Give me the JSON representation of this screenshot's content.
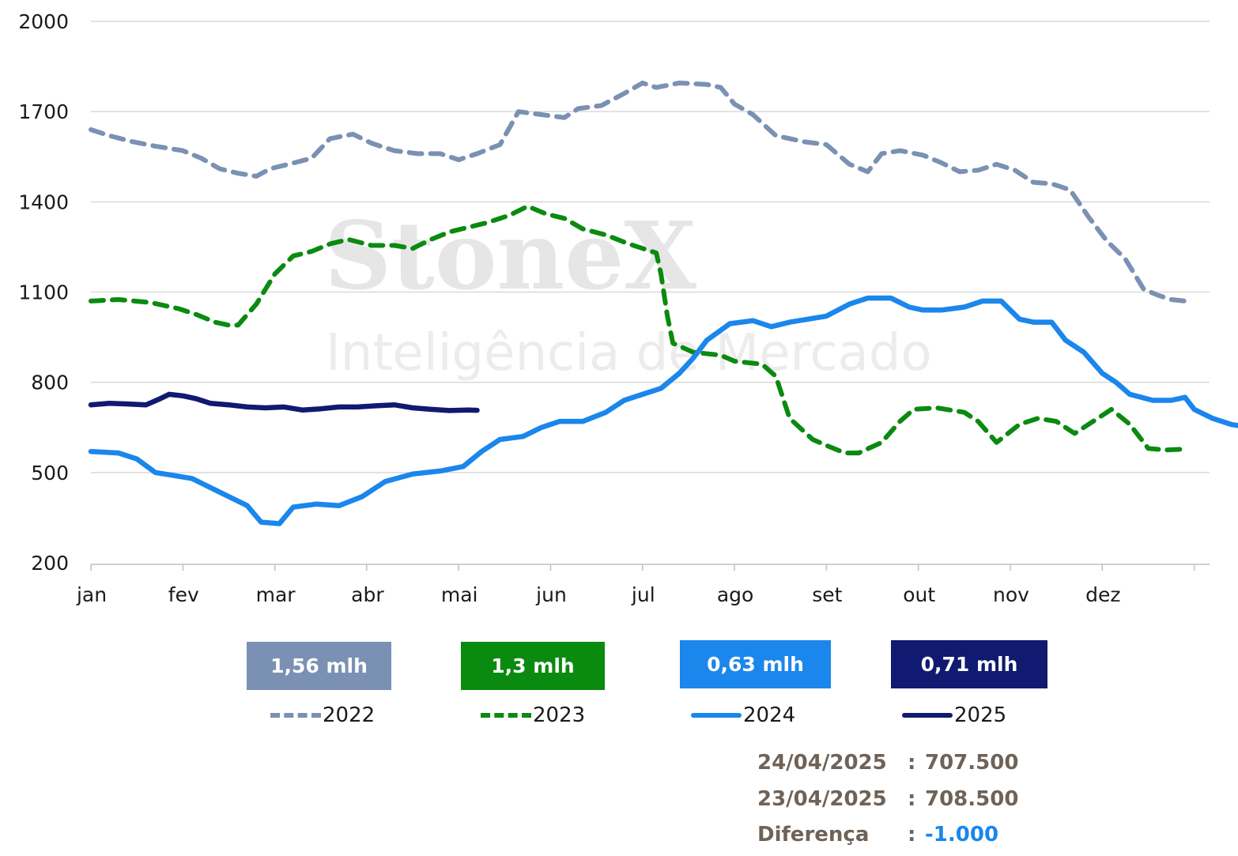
{
  "chart_data": {
    "type": "line",
    "y_ticks": [
      "2000",
      "1700",
      "1400",
      "1100",
      "800",
      "500",
      "200"
    ],
    "ylim": [
      200,
      2000
    ],
    "months": [
      "jan",
      "fev",
      "mar",
      "abr",
      "mai",
      "jun",
      "jul",
      "ago",
      "set",
      "out",
      "nov",
      "dez"
    ],
    "grid": "horizontal",
    "legend_position": "bottom",
    "watermark": "StoneX Inteligência de Mercado",
    "series": [
      {
        "name": "2022",
        "color": "#7a91b3",
        "style": "dashed",
        "points": [
          [
            0,
            1640
          ],
          [
            0.2,
            1620
          ],
          [
            0.45,
            1600
          ],
          [
            0.7,
            1585
          ],
          [
            1,
            1570
          ],
          [
            1.2,
            1545
          ],
          [
            1.4,
            1510
          ],
          [
            1.6,
            1495
          ],
          [
            1.8,
            1485
          ],
          [
            1.95,
            1510
          ],
          [
            2.15,
            1525
          ],
          [
            2.4,
            1545
          ],
          [
            2.6,
            1610
          ],
          [
            2.85,
            1625
          ],
          [
            3.05,
            1595
          ],
          [
            3.3,
            1570
          ],
          [
            3.55,
            1560
          ],
          [
            3.8,
            1560
          ],
          [
            4.0,
            1540
          ],
          [
            4.2,
            1560
          ],
          [
            4.45,
            1590
          ],
          [
            4.65,
            1700
          ],
          [
            4.9,
            1690
          ],
          [
            5.15,
            1680
          ],
          [
            5.3,
            1710
          ],
          [
            5.55,
            1720
          ],
          [
            5.8,
            1760
          ],
          [
            6.0,
            1795
          ],
          [
            6.15,
            1780
          ],
          [
            6.4,
            1795
          ],
          [
            6.7,
            1790
          ],
          [
            6.85,
            1780
          ],
          [
            7.0,
            1725
          ],
          [
            7.2,
            1690
          ],
          [
            7.45,
            1620
          ],
          [
            7.75,
            1600
          ],
          [
            8.0,
            1590
          ],
          [
            8.25,
            1525
          ],
          [
            8.45,
            1500
          ],
          [
            8.6,
            1560
          ],
          [
            8.8,
            1570
          ],
          [
            9.05,
            1555
          ],
          [
            9.25,
            1530
          ],
          [
            9.45,
            1500
          ],
          [
            9.65,
            1505
          ],
          [
            9.85,
            1525
          ],
          [
            10.05,
            1505
          ],
          [
            10.25,
            1465
          ],
          [
            10.45,
            1460
          ],
          [
            10.65,
            1440
          ],
          [
            10.85,
            1350
          ],
          [
            11.05,
            1270
          ],
          [
            11.25,
            1210
          ],
          [
            11.45,
            1110
          ],
          [
            11.6,
            1090
          ],
          [
            11.75,
            1075
          ],
          [
            11.9,
            1070
          ]
        ]
      },
      {
        "name": "2023",
        "color": "#0b8a10",
        "style": "dashed",
        "points": [
          [
            0,
            1070
          ],
          [
            0.3,
            1075
          ],
          [
            0.65,
            1065
          ],
          [
            0.95,
            1045
          ],
          [
            1.15,
            1025
          ],
          [
            1.35,
            1000
          ],
          [
            1.5,
            990
          ],
          [
            1.6,
            990
          ],
          [
            1.8,
            1060
          ],
          [
            2.0,
            1160
          ],
          [
            2.2,
            1220
          ],
          [
            2.4,
            1235
          ],
          [
            2.6,
            1260
          ],
          [
            2.8,
            1275
          ],
          [
            3.05,
            1255
          ],
          [
            3.3,
            1255
          ],
          [
            3.5,
            1245
          ],
          [
            3.7,
            1275
          ],
          [
            3.9,
            1300
          ],
          [
            4.1,
            1315
          ],
          [
            4.3,
            1330
          ],
          [
            4.55,
            1355
          ],
          [
            4.75,
            1385
          ],
          [
            4.95,
            1360
          ],
          [
            5.15,
            1345
          ],
          [
            5.35,
            1310
          ],
          [
            5.6,
            1290
          ],
          [
            5.85,
            1260
          ],
          [
            6.05,
            1240
          ],
          [
            6.15,
            1230
          ],
          [
            6.2,
            1160
          ],
          [
            6.27,
            1020
          ],
          [
            6.33,
            930
          ],
          [
            6.55,
            900
          ],
          [
            6.85,
            890
          ],
          [
            7.0,
            870
          ],
          [
            7.3,
            860
          ],
          [
            7.45,
            820
          ],
          [
            7.6,
            680
          ],
          [
            7.85,
            610
          ],
          [
            8.0,
            590
          ],
          [
            8.2,
            565
          ],
          [
            8.35,
            565
          ],
          [
            8.6,
            600
          ],
          [
            8.8,
            670
          ],
          [
            8.95,
            710
          ],
          [
            9.2,
            715
          ],
          [
            9.5,
            700
          ],
          [
            9.65,
            670
          ],
          [
            9.85,
            600
          ],
          [
            10.1,
            660
          ],
          [
            10.3,
            680
          ],
          [
            10.5,
            670
          ],
          [
            10.7,
            630
          ],
          [
            10.9,
            670
          ],
          [
            11.1,
            710
          ],
          [
            11.3,
            660
          ],
          [
            11.5,
            580
          ],
          [
            11.7,
            575
          ],
          [
            11.9,
            578
          ]
        ]
      },
      {
        "name": "2024",
        "color": "#1b86ec",
        "style": "solid",
        "points": [
          [
            0,
            570
          ],
          [
            0.3,
            565
          ],
          [
            0.5,
            545
          ],
          [
            0.7,
            500
          ],
          [
            0.9,
            490
          ],
          [
            1.1,
            480
          ],
          [
            1.3,
            450
          ],
          [
            1.5,
            420
          ],
          [
            1.7,
            390
          ],
          [
            1.85,
            335
          ],
          [
            2.05,
            330
          ],
          [
            2.2,
            385
          ],
          [
            2.45,
            395
          ],
          [
            2.7,
            390
          ],
          [
            2.95,
            420
          ],
          [
            3.2,
            470
          ],
          [
            3.5,
            495
          ],
          [
            3.8,
            505
          ],
          [
            4.05,
            520
          ],
          [
            4.25,
            570
          ],
          [
            4.45,
            610
          ],
          [
            4.7,
            620
          ],
          [
            4.9,
            650
          ],
          [
            5.1,
            670
          ],
          [
            5.35,
            670
          ],
          [
            5.6,
            700
          ],
          [
            5.8,
            740
          ],
          [
            6.0,
            760
          ],
          [
            6.2,
            780
          ],
          [
            6.4,
            830
          ],
          [
            6.55,
            880
          ],
          [
            6.7,
            940
          ],
          [
            6.95,
            995
          ],
          [
            7.2,
            1005
          ],
          [
            7.4,
            985
          ],
          [
            7.6,
            1000
          ],
          [
            7.8,
            1010
          ],
          [
            8.0,
            1020
          ],
          [
            8.25,
            1060
          ],
          [
            8.45,
            1080
          ],
          [
            8.7,
            1080
          ],
          [
            8.9,
            1050
          ],
          [
            9.05,
            1040
          ],
          [
            9.25,
            1040
          ],
          [
            9.5,
            1050
          ],
          [
            9.7,
            1070
          ],
          [
            9.9,
            1070
          ],
          [
            10.1,
            1010
          ],
          [
            10.25,
            1000
          ],
          [
            10.45,
            1000
          ],
          [
            10.6,
            940
          ],
          [
            10.8,
            900
          ],
          [
            11.0,
            830
          ],
          [
            11.15,
            800
          ],
          [
            11.3,
            760
          ],
          [
            11.55,
            740
          ],
          [
            11.75,
            740
          ],
          [
            11.9,
            750
          ],
          [
            12.0,
            710
          ],
          [
            12.2,
            680
          ],
          [
            12.4,
            660
          ],
          [
            12.6,
            650
          ],
          [
            12.8,
            650
          ],
          [
            13.0,
            640
          ],
          [
            13.2,
            630
          ],
          [
            13.4,
            625
          ],
          [
            13.55,
            640
          ],
          [
            13.75,
            650
          ],
          [
            13.9,
            660
          ],
          [
            14.05,
            715
          ]
        ]
      },
      {
        "name": "2025",
        "color": "#101a70",
        "style": "solid",
        "points": [
          [
            0,
            725
          ],
          [
            0.2,
            730
          ],
          [
            0.4,
            728
          ],
          [
            0.6,
            725
          ],
          [
            0.75,
            745
          ],
          [
            0.85,
            760
          ],
          [
            1.0,
            755
          ],
          [
            1.15,
            745
          ],
          [
            1.3,
            730
          ],
          [
            1.5,
            725
          ],
          [
            1.7,
            718
          ],
          [
            1.9,
            715
          ],
          [
            2.1,
            718
          ],
          [
            2.3,
            708
          ],
          [
            2.5,
            712
          ],
          [
            2.7,
            718
          ],
          [
            2.9,
            718
          ],
          [
            3.1,
            722
          ],
          [
            3.3,
            725
          ],
          [
            3.5,
            715
          ],
          [
            3.7,
            710
          ],
          [
            3.9,
            706
          ],
          [
            4.1,
            708
          ],
          [
            4.2,
            707
          ]
        ]
      }
    ],
    "badges": [
      {
        "series": "2022",
        "value": "1,56 mlh",
        "color": "#7a91b3"
      },
      {
        "series": "2023",
        "value": "1,3 mlh",
        "color": "#0b8a10"
      },
      {
        "series": "2024",
        "value": "0,63 mlh",
        "color": "#1b86ec"
      },
      {
        "series": "2025",
        "value": "0,71 mlh",
        "color": "#101a70"
      }
    ],
    "info": [
      {
        "label": "24/04/2025",
        "value": "707.500"
      },
      {
        "label": "23/04/2025",
        "value": "708.500"
      },
      {
        "label": "Diferença",
        "value": "-1.000",
        "value_color": "#1b86ec"
      }
    ]
  }
}
